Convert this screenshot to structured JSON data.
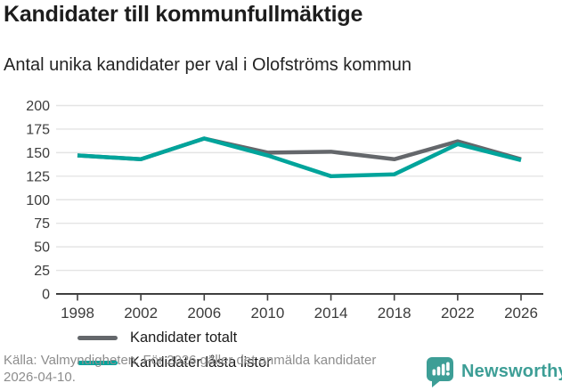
{
  "header": {
    "title": "Kandidater till kommunfullmäktige",
    "subtitle": "Antal unika kandidater per val i Olofströms kommun"
  },
  "chart_data": {
    "type": "line",
    "x": [
      1998,
      2002,
      2006,
      2010,
      2014,
      2018,
      2022,
      2026
    ],
    "series": [
      {
        "name": "Kandidater totalt",
        "color": "#64676b",
        "values": [
          147,
          143,
          165,
          150,
          151,
          143,
          162,
          143
        ]
      },
      {
        "name": "Kandidater låsta listor",
        "color": "#00a49b",
        "values": [
          147,
          143,
          165,
          147,
          125,
          127,
          159,
          142
        ]
      }
    ],
    "ylim": [
      0,
      200
    ],
    "yticks": [
      0,
      25,
      50,
      75,
      100,
      125,
      150,
      175,
      200
    ],
    "grid": true,
    "legend_position": "inside bottom-left",
    "colors": {
      "gridline": "#e4e4e4",
      "axis": "#3f3f3f",
      "tick_label": "#3c3c3c"
    }
  },
  "footer": {
    "source": "Källa: Valmyndigheten. För 2026 gäller det anmälda kandidater 2026-04-10."
  },
  "branding": {
    "name": "Newsworthy",
    "color": "#3d9e96",
    "icon": "bar-chart-speech-bubble"
  }
}
